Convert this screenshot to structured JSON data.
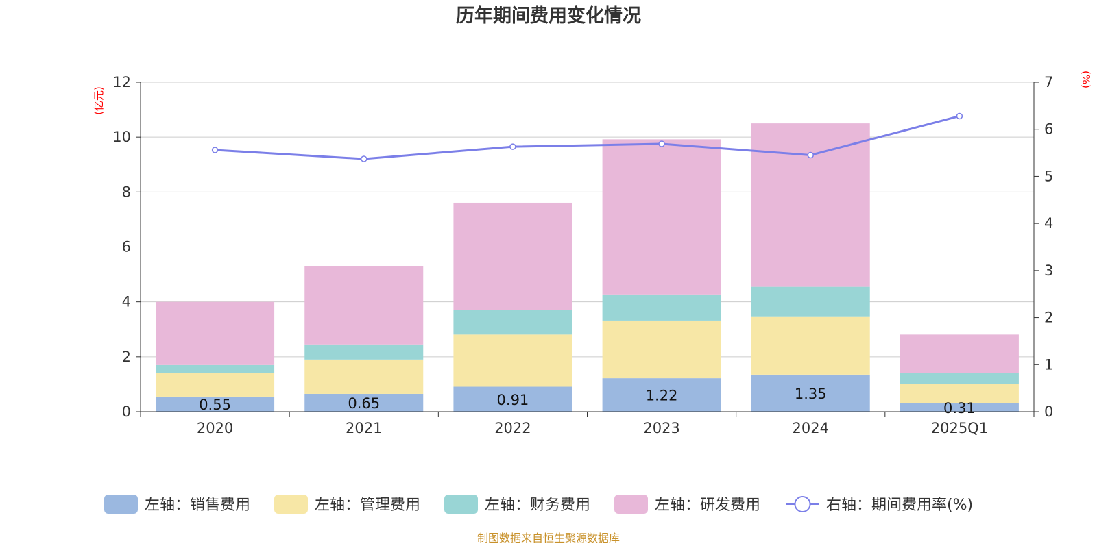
{
  "chart_data": {
    "type": "bar",
    "title": "历年期间费用变化情况",
    "categories": [
      "2020",
      "2021",
      "2022",
      "2023",
      "2024",
      "2025Q1"
    ],
    "left_axis": {
      "unit": "(亿元)",
      "ylim": [
        0,
        12
      ],
      "ticks": [
        "0",
        "2",
        "4",
        "6",
        "8",
        "10",
        "12"
      ]
    },
    "right_axis": {
      "unit": "(%)",
      "ylim": [
        0,
        7
      ],
      "ticks": [
        "0",
        "1",
        "2",
        "3",
        "4",
        "5",
        "6",
        "7"
      ]
    },
    "stacked_series": [
      {
        "name": "左轴：销售费用",
        "color": "#9bb8e0",
        "values": [
          0.55,
          0.65,
          0.91,
          1.22,
          1.35,
          0.31
        ],
        "labels": [
          "0.55",
          "0.65",
          "0.91",
          "1.22",
          "1.35",
          "0.31"
        ]
      },
      {
        "name": "左轴：管理费用",
        "color": "#f7e7a6",
        "values": [
          0.85,
          1.25,
          1.9,
          2.1,
          2.1,
          0.7
        ]
      },
      {
        "name": "左轴：财务费用",
        "color": "#99d5d5",
        "values": [
          0.3,
          0.55,
          0.9,
          0.95,
          1.1,
          0.4
        ]
      },
      {
        "name": "左轴：研发费用",
        "color": "#e8b8d9",
        "values": [
          2.3,
          2.85,
          3.9,
          5.65,
          5.95,
          1.4
        ]
      }
    ],
    "line_series": {
      "name": "右轴：期间费用率(%)",
      "color": "#7b7fe8",
      "axis": "right",
      "values": [
        5.56,
        5.37,
        5.63,
        5.69,
        5.45,
        6.28
      ]
    },
    "legend_position": "bottom",
    "grid": true
  },
  "source": "制图数据来自恒生聚源数据库"
}
